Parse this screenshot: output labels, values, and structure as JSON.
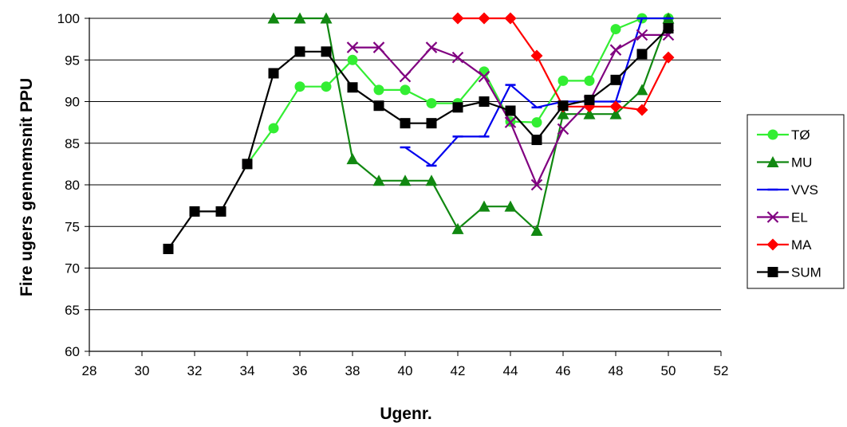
{
  "chart_data": {
    "type": "line",
    "title": "",
    "xlabel": "Ugenr.",
    "ylabel": "Fire ugers gennemsnit PPU",
    "xlim": [
      28,
      52
    ],
    "ylim": [
      60,
      100
    ],
    "x_ticks": [
      "28",
      "30",
      "32",
      "34",
      "36",
      "38",
      "40",
      "42",
      "44",
      "46",
      "48",
      "50",
      "52"
    ],
    "y_ticks": [
      "60",
      "65",
      "70",
      "75",
      "80",
      "85",
      "90",
      "95",
      "100"
    ],
    "grid": "horizontal",
    "legend_position": "right",
    "series": [
      {
        "name": "TØ",
        "color": "#33ee33",
        "marker": "circle",
        "x": [
          34,
          35,
          36,
          37,
          38,
          39,
          40,
          41,
          42,
          43,
          44,
          45,
          46,
          47,
          48,
          49,
          50
        ],
        "y": [
          82.5,
          86.8,
          91.8,
          91.8,
          95.0,
          91.4,
          91.4,
          89.8,
          89.8,
          93.6,
          87.6,
          87.5,
          92.5,
          92.5,
          98.7,
          100,
          100
        ]
      },
      {
        "name": "MU",
        "color": "#118811",
        "marker": "triangle",
        "x": [
          35,
          36,
          37,
          38,
          39,
          40,
          41,
          42,
          43,
          44,
          45,
          46,
          47,
          48,
          49,
          50
        ],
        "y": [
          100,
          100,
          100,
          83.1,
          80.5,
          80.5,
          80.5,
          74.7,
          77.4,
          77.4,
          74.5,
          88.5,
          88.5,
          88.5,
          91.4,
          100
        ]
      },
      {
        "name": "VVS",
        "color": "#0000ee",
        "marker": "dash",
        "x": [
          40,
          41,
          42,
          43,
          44,
          45,
          46,
          47,
          48,
          49,
          50
        ],
        "y": [
          84.5,
          82.3,
          85.8,
          85.8,
          92.0,
          89.3,
          90.0,
          90.0,
          90.0,
          100,
          100
        ]
      },
      {
        "name": "EL",
        "color": "#800080",
        "marker": "x",
        "x": [
          38,
          39,
          40,
          41,
          42,
          43,
          44,
          45,
          46,
          47,
          48,
          49,
          50
        ],
        "y": [
          96.5,
          96.5,
          93.0,
          96.5,
          95.3,
          93.0,
          87.5,
          80.0,
          86.7,
          90.0,
          96.2,
          98.0,
          98.0
        ]
      },
      {
        "name": "MA",
        "color": "#ff0000",
        "marker": "diamond",
        "x": [
          42,
          43,
          44,
          45,
          46,
          47,
          48,
          49,
          50
        ],
        "y": [
          100,
          100,
          100,
          95.5,
          89.4,
          89.4,
          89.4,
          89.0,
          95.3
        ]
      },
      {
        "name": "SUM",
        "color": "#000000",
        "marker": "square",
        "x": [
          31,
          32,
          33,
          34,
          35,
          36,
          37,
          38,
          39,
          40,
          41,
          42,
          43,
          44,
          45,
          46,
          47,
          48,
          49,
          50
        ],
        "y": [
          72.3,
          76.8,
          76.8,
          82.5,
          93.4,
          96.0,
          96.0,
          91.7,
          89.5,
          87.4,
          87.4,
          89.3,
          90.0,
          88.9,
          85.4,
          89.5,
          90.2,
          92.6,
          95.7,
          98.8
        ]
      }
    ]
  }
}
